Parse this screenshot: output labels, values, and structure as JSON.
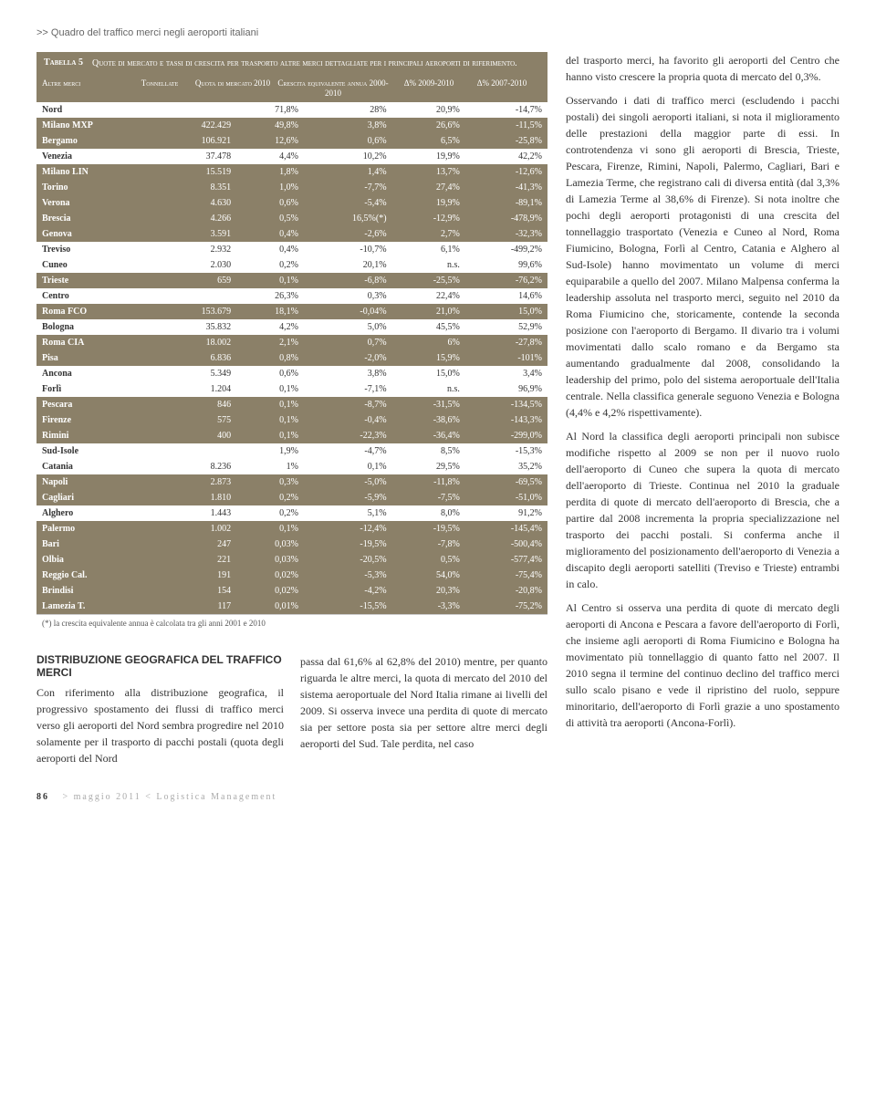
{
  "breadcrumb": ">> Quadro del traffico merci negli aeroporti italiani",
  "table5": {
    "label": "Tabella 5",
    "title": "Quote di mercato e tassi di crescita per trasporto altre merci dettagliate per i principali aeroporti di riferimento.",
    "headers": {
      "c0": "Altre merci",
      "c1": "Tonnellate",
      "c2": "Quota di mercato 2010",
      "c3": "Crescita equivalente annua 2000-2010",
      "c4": "Δ% 2009-2010",
      "c5": "Δ% 2007-2010"
    },
    "rows": [
      {
        "hl": false,
        "region": true,
        "c0": "Nord",
        "c1": "",
        "c2": "71,8%",
        "c3": "28%",
        "c4": "20,9%",
        "c5": "-14,7%"
      },
      {
        "hl": true,
        "c0": "Milano MXP",
        "c1": "422.429",
        "c2": "49,8%",
        "c3": "3,8%",
        "c4": "26,6%",
        "c5": "-11,5%"
      },
      {
        "hl": true,
        "c0": "Bergamo",
        "c1": "106.921",
        "c2": "12,6%",
        "c3": "0,6%",
        "c4": "6,5%",
        "c5": "-25,8%"
      },
      {
        "hl": false,
        "c0": "Venezia",
        "c1": "37.478",
        "c2": "4,4%",
        "c3": "10,2%",
        "c4": "19,9%",
        "c5": "42,2%"
      },
      {
        "hl": true,
        "c0": "Milano LIN",
        "c1": "15.519",
        "c2": "1,8%",
        "c3": "1,4%",
        "c4": "13,7%",
        "c5": "-12,6%"
      },
      {
        "hl": true,
        "c0": "Torino",
        "c1": "8.351",
        "c2": "1,0%",
        "c3": "-7,7%",
        "c4": "27,4%",
        "c5": "-41,3%"
      },
      {
        "hl": true,
        "c0": "Verona",
        "c1": "4.630",
        "c2": "0,6%",
        "c3": "-5,4%",
        "c4": "19,9%",
        "c5": "-89,1%"
      },
      {
        "hl": true,
        "c0": "Brescia",
        "c1": "4.266",
        "c2": "0,5%",
        "c3": "16,5%(*)",
        "c4": "-12,9%",
        "c5": "-478,9%"
      },
      {
        "hl": true,
        "c0": "Genova",
        "c1": "3.591",
        "c2": "0,4%",
        "c3": "-2,6%",
        "c4": "2,7%",
        "c5": "-32,3%"
      },
      {
        "hl": false,
        "c0": "Treviso",
        "c1": "2.932",
        "c2": "0,4%",
        "c3": "-10,7%",
        "c4": "6,1%",
        "c5": "-499,2%"
      },
      {
        "hl": false,
        "c0": "Cuneo",
        "c1": "2.030",
        "c2": "0,2%",
        "c3": "20,1%",
        "c4": "n.s.",
        "c5": "99,6%"
      },
      {
        "hl": true,
        "c0": "Trieste",
        "c1": "659",
        "c2": "0,1%",
        "c3": "-6,8%",
        "c4": "-25,5%",
        "c5": "-76,2%"
      },
      {
        "hl": false,
        "region": true,
        "c0": "Centro",
        "c1": "",
        "c2": "26,3%",
        "c3": "0,3%",
        "c4": "22,4%",
        "c5": "14,6%"
      },
      {
        "hl": true,
        "c0": "Roma FCO",
        "c1": "153.679",
        "c2": "18,1%",
        "c3": "-0,04%",
        "c4": "21,0%",
        "c5": "15,0%"
      },
      {
        "hl": false,
        "c0": "Bologna",
        "c1": "35.832",
        "c2": "4,2%",
        "c3": "5,0%",
        "c4": "45,5%",
        "c5": "52,9%"
      },
      {
        "hl": true,
        "c0": "Roma CIA",
        "c1": "18.002",
        "c2": "2,1%",
        "c3": "0,7%",
        "c4": "6%",
        "c5": "-27,8%"
      },
      {
        "hl": true,
        "c0": "Pisa",
        "c1": "6.836",
        "c2": "0,8%",
        "c3": "-2,0%",
        "c4": "15,9%",
        "c5": "-101%"
      },
      {
        "hl": false,
        "c0": "Ancona",
        "c1": "5.349",
        "c2": "0,6%",
        "c3": "3,8%",
        "c4": "15,0%",
        "c5": "3,4%"
      },
      {
        "hl": false,
        "c0": "Forlì",
        "c1": "1.204",
        "c2": "0,1%",
        "c3": "-7,1%",
        "c4": "n.s.",
        "c5": "96,9%"
      },
      {
        "hl": true,
        "c0": "Pescara",
        "c1": "846",
        "c2": "0,1%",
        "c3": "-8,7%",
        "c4": "-31,5%",
        "c5": "-134,5%"
      },
      {
        "hl": true,
        "c0": "Firenze",
        "c1": "575",
        "c2": "0,1%",
        "c3": "-0,4%",
        "c4": "-38,6%",
        "c5": "-143,3%"
      },
      {
        "hl": true,
        "c0": "Rimini",
        "c1": "400",
        "c2": "0,1%",
        "c3": "-22,3%",
        "c4": "-36,4%",
        "c5": "-299,0%"
      },
      {
        "hl": false,
        "region": true,
        "c0": "Sud-Isole",
        "c1": "",
        "c2": "1,9%",
        "c3": "-4,7%",
        "c4": "8,5%",
        "c5": "-15,3%"
      },
      {
        "hl": false,
        "c0": "Catania",
        "c1": "8.236",
        "c2": "1%",
        "c3": "0,1%",
        "c4": "29,5%",
        "c5": "35,2%"
      },
      {
        "hl": true,
        "c0": "Napoli",
        "c1": "2.873",
        "c2": "0,3%",
        "c3": "-5,0%",
        "c4": "-11,8%",
        "c5": "-69,5%"
      },
      {
        "hl": true,
        "c0": "Cagliari",
        "c1": "1.810",
        "c2": "0,2%",
        "c3": "-5,9%",
        "c4": "-7,5%",
        "c5": "-51,0%"
      },
      {
        "hl": false,
        "c0": "Alghero",
        "c1": "1.443",
        "c2": "0,2%",
        "c3": "5,1%",
        "c4": "8,0%",
        "c5": "91,2%"
      },
      {
        "hl": true,
        "c0": "Palermo",
        "c1": "1.002",
        "c2": "0,1%",
        "c3": "-12,4%",
        "c4": "-19,5%",
        "c5": "-145,4%"
      },
      {
        "hl": true,
        "c0": "Bari",
        "c1": "247",
        "c2": "0,03%",
        "c3": "-19,5%",
        "c4": "-7,8%",
        "c5": "-500,4%"
      },
      {
        "hl": true,
        "c0": "Olbia",
        "c1": "221",
        "c2": "0,03%",
        "c3": "-20,5%",
        "c4": "0,5%",
        "c5": "-577,4%"
      },
      {
        "hl": true,
        "c0": "Reggio Cal.",
        "c1": "191",
        "c2": "0,02%",
        "c3": "-5,3%",
        "c4": "54,0%",
        "c5": "-75,4%"
      },
      {
        "hl": true,
        "c0": "Brindisi",
        "c1": "154",
        "c2": "0,02%",
        "c3": "-4,2%",
        "c4": "20,3%",
        "c5": "-20,8%"
      },
      {
        "hl": true,
        "c0": "Lamezia T.",
        "c1": "117",
        "c2": "0,01%",
        "c3": "-15,5%",
        "c4": "-3,3%",
        "c5": "-75,2%"
      }
    ],
    "footnote": "(*) la crescita equivalente annua è calcolata tra gli anni 2001 e 2010"
  },
  "bottom": {
    "sectionTitle": "DISTRIBUZIONE GEOGRAFICA DEL TRAFFICO MERCI",
    "col1": "Con riferimento alla distribuzione geografica, il progressivo spostamento dei flussi di traffico merci verso gli aeroporti del Nord sembra progredire nel 2010 solamente per il trasporto di pacchi postali (quota degli aeroporti del Nord",
    "col2": "passa dal 61,6% al 62,8% del 2010) mentre, per quanto riguarda le altre merci, la quota di mercato del 2010 del sistema aeroportuale del Nord Italia rimane ai livelli del 2009. Si osserva invece una perdita di quote di mercato sia per settore posta sia per settore altre merci degli aeroporti del Sud. Tale perdita, nel caso"
  },
  "right": {
    "p1": "del trasporto merci, ha favorito gli aeroporti del Centro che hanno visto crescere la propria quota di mercato del 0,3%.",
    "p2": "Osservando i dati di traffico merci (escludendo i pacchi postali) dei singoli aeroporti italiani, si nota il miglioramento delle prestazioni della maggior parte di essi. In controtendenza vi sono gli aeroporti di Brescia, Trieste, Pescara, Firenze, Rimini, Napoli, Palermo, Cagliari, Bari e Lamezia Terme, che registrano cali di diversa entità (dal 3,3% di Lamezia Terme al 38,6% di Firenze). Si nota inoltre che pochi degli aeroporti protagonisti di una crescita del tonnellaggio trasportato (Venezia e Cuneo al Nord, Roma Fiumicino, Bologna, Forlì al Centro, Catania e Alghero al Sud-Isole) hanno movimentato un volume di merci equiparabile a quello del 2007. Milano Malpensa conferma la leadership assoluta nel trasporto merci, seguito nel 2010 da Roma Fiumicino che, storicamente, contende la seconda posizione con l'aeroporto di Bergamo. Il divario tra i volumi movimentati dallo scalo romano e da Bergamo sta aumentando gradualmente dal 2008, consolidando la leadership del primo, polo del sistema aeroportuale dell'Italia centrale. Nella classifica generale seguono Venezia e Bologna (4,4% e 4,2% rispettivamente).",
    "p3": "Al Nord la classifica degli aeroporti principali non subisce modifiche rispetto al 2009 se non per il nuovo ruolo dell'aeroporto di Cuneo che supera la quota di mercato dell'aeroporto di Trieste. Continua nel 2010 la graduale perdita di quote di mercato dell'aeroporto di Brescia, che a partire dal 2008 incrementa la propria specializzazione nel trasporto dei pacchi postali. Si conferma anche il miglioramento del posizionamento dell'aeroporto di Venezia a discapito degli aeroporti satelliti (Treviso e Trieste) entrambi in calo.",
    "p4": "Al Centro si osserva una perdita di quote di mercato degli aeroporti di Ancona e Pescara a favore dell'aeroporto di Forlì, che insieme agli aeroporti di Roma Fiumicino e Bologna ha movimentato più tonnellaggio di quanto fatto nel 2007. Il 2010 segna il termine del continuo declino del traffico merci sullo scalo pisano e vede il ripristino del ruolo, seppure minoritario, dell'aeroporto di Forlì grazie a uno spostamento di attività tra aeroporti (Ancona-Forlì)."
  },
  "footer": {
    "pageNum": "86",
    "text": "> maggio 2011 < Logistica Management"
  },
  "colors": {
    "hlBg": "#8b8068",
    "hlFg": "#ffffff"
  }
}
